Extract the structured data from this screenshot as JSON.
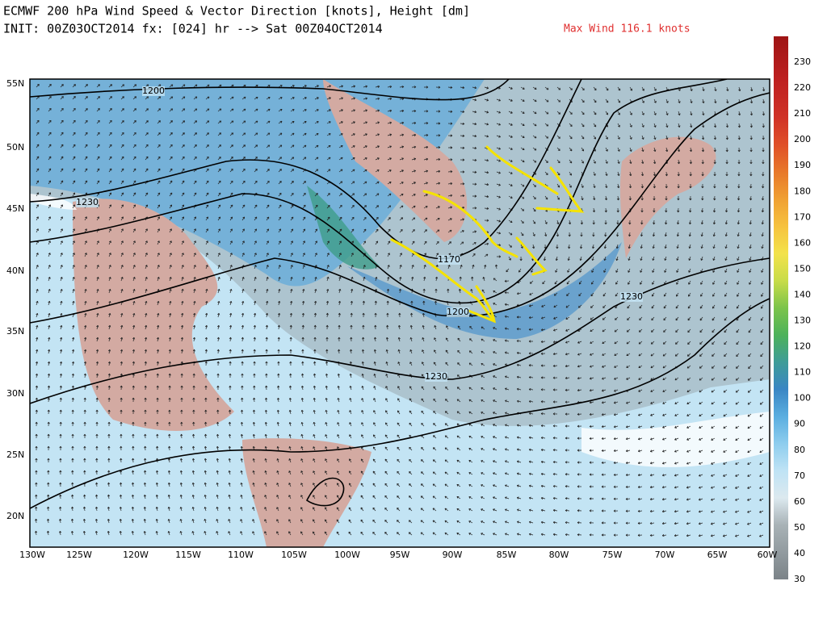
{
  "header": {
    "line1": "ECMWF 200 hPa Wind Speed & Vector Direction [knots], Height [dm]",
    "line2": "INIT: 00Z03OCT2014 fx: [024] hr --> Sat 00Z04OCT2014",
    "max_wind": "Max Wind 116.1 knots"
  },
  "map": {
    "lat_labels": [
      "55N",
      "50N",
      "45N",
      "40N",
      "35N",
      "30N",
      "25N",
      "20N"
    ],
    "lon_labels": [
      "130W",
      "125W",
      "120W",
      "115W",
      "110W",
      "105W",
      "100W",
      "95W",
      "90W",
      "85W",
      "80W",
      "75W",
      "70W",
      "65W",
      "60W"
    ],
    "contour_labels": [
      "1200",
      "1230",
      "1170",
      "1200",
      "1230",
      "1230"
    ]
  },
  "colorbar": {
    "labels": [
      230,
      220,
      210,
      200,
      190,
      180,
      170,
      160,
      150,
      140,
      130,
      120,
      110,
      100,
      90,
      80,
      70,
      60,
      50,
      40,
      30
    ]
  }
}
